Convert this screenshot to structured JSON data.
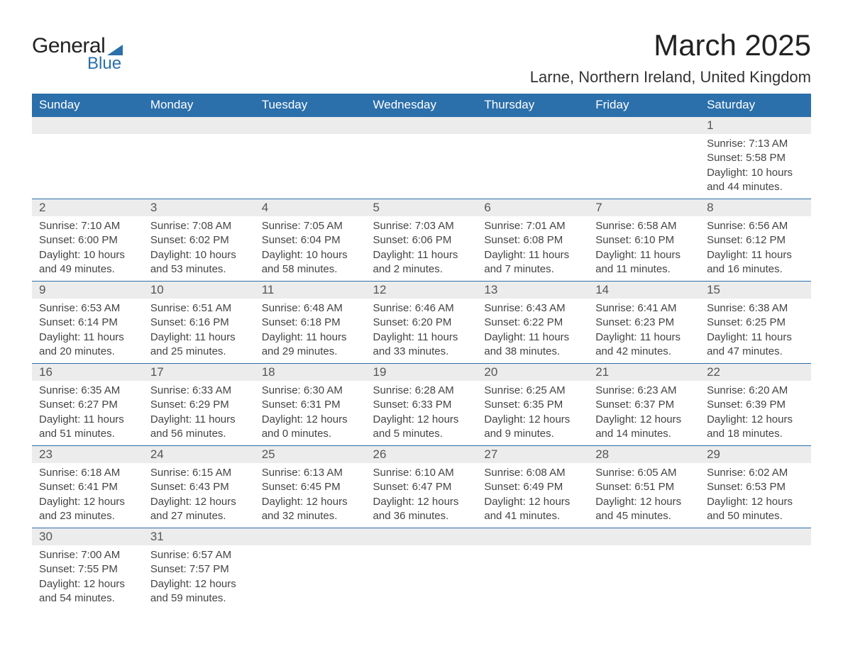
{
  "logo": {
    "text1": "General",
    "text2": "Blue"
  },
  "title": "March 2025",
  "location": "Larne, Northern Ireland, United Kingdom",
  "colors": {
    "header_bg": "#2b6fab",
    "header_text": "#ffffff",
    "daynum_bg": "#ececec",
    "row_border": "#2b6fab",
    "body_text": "#444444",
    "page_bg": "#ffffff"
  },
  "typography": {
    "title_fontsize": 42,
    "location_fontsize": 22,
    "header_fontsize": 17,
    "daynum_fontsize": 17,
    "cell_fontsize": 15
  },
  "columns": [
    "Sunday",
    "Monday",
    "Tuesday",
    "Wednesday",
    "Thursday",
    "Friday",
    "Saturday"
  ],
  "weeks": [
    [
      null,
      null,
      null,
      null,
      null,
      null,
      {
        "n": "1",
        "sunrise": "7:13 AM",
        "sunset": "5:58 PM",
        "dl1": "10 hours",
        "dl2": "and 44 minutes."
      }
    ],
    [
      {
        "n": "2",
        "sunrise": "7:10 AM",
        "sunset": "6:00 PM",
        "dl1": "10 hours",
        "dl2": "and 49 minutes."
      },
      {
        "n": "3",
        "sunrise": "7:08 AM",
        "sunset": "6:02 PM",
        "dl1": "10 hours",
        "dl2": "and 53 minutes."
      },
      {
        "n": "4",
        "sunrise": "7:05 AM",
        "sunset": "6:04 PM",
        "dl1": "10 hours",
        "dl2": "and 58 minutes."
      },
      {
        "n": "5",
        "sunrise": "7:03 AM",
        "sunset": "6:06 PM",
        "dl1": "11 hours",
        "dl2": "and 2 minutes."
      },
      {
        "n": "6",
        "sunrise": "7:01 AM",
        "sunset": "6:08 PM",
        "dl1": "11 hours",
        "dl2": "and 7 minutes."
      },
      {
        "n": "7",
        "sunrise": "6:58 AM",
        "sunset": "6:10 PM",
        "dl1": "11 hours",
        "dl2": "and 11 minutes."
      },
      {
        "n": "8",
        "sunrise": "6:56 AM",
        "sunset": "6:12 PM",
        "dl1": "11 hours",
        "dl2": "and 16 minutes."
      }
    ],
    [
      {
        "n": "9",
        "sunrise": "6:53 AM",
        "sunset": "6:14 PM",
        "dl1": "11 hours",
        "dl2": "and 20 minutes."
      },
      {
        "n": "10",
        "sunrise": "6:51 AM",
        "sunset": "6:16 PM",
        "dl1": "11 hours",
        "dl2": "and 25 minutes."
      },
      {
        "n": "11",
        "sunrise": "6:48 AM",
        "sunset": "6:18 PM",
        "dl1": "11 hours",
        "dl2": "and 29 minutes."
      },
      {
        "n": "12",
        "sunrise": "6:46 AM",
        "sunset": "6:20 PM",
        "dl1": "11 hours",
        "dl2": "and 33 minutes."
      },
      {
        "n": "13",
        "sunrise": "6:43 AM",
        "sunset": "6:22 PM",
        "dl1": "11 hours",
        "dl2": "and 38 minutes."
      },
      {
        "n": "14",
        "sunrise": "6:41 AM",
        "sunset": "6:23 PM",
        "dl1": "11 hours",
        "dl2": "and 42 minutes."
      },
      {
        "n": "15",
        "sunrise": "6:38 AM",
        "sunset": "6:25 PM",
        "dl1": "11 hours",
        "dl2": "and 47 minutes."
      }
    ],
    [
      {
        "n": "16",
        "sunrise": "6:35 AM",
        "sunset": "6:27 PM",
        "dl1": "11 hours",
        "dl2": "and 51 minutes."
      },
      {
        "n": "17",
        "sunrise": "6:33 AM",
        "sunset": "6:29 PM",
        "dl1": "11 hours",
        "dl2": "and 56 minutes."
      },
      {
        "n": "18",
        "sunrise": "6:30 AM",
        "sunset": "6:31 PM",
        "dl1": "12 hours",
        "dl2": "and 0 minutes."
      },
      {
        "n": "19",
        "sunrise": "6:28 AM",
        "sunset": "6:33 PM",
        "dl1": "12 hours",
        "dl2": "and 5 minutes."
      },
      {
        "n": "20",
        "sunrise": "6:25 AM",
        "sunset": "6:35 PM",
        "dl1": "12 hours",
        "dl2": "and 9 minutes."
      },
      {
        "n": "21",
        "sunrise": "6:23 AM",
        "sunset": "6:37 PM",
        "dl1": "12 hours",
        "dl2": "and 14 minutes."
      },
      {
        "n": "22",
        "sunrise": "6:20 AM",
        "sunset": "6:39 PM",
        "dl1": "12 hours",
        "dl2": "and 18 minutes."
      }
    ],
    [
      {
        "n": "23",
        "sunrise": "6:18 AM",
        "sunset": "6:41 PM",
        "dl1": "12 hours",
        "dl2": "and 23 minutes."
      },
      {
        "n": "24",
        "sunrise": "6:15 AM",
        "sunset": "6:43 PM",
        "dl1": "12 hours",
        "dl2": "and 27 minutes."
      },
      {
        "n": "25",
        "sunrise": "6:13 AM",
        "sunset": "6:45 PM",
        "dl1": "12 hours",
        "dl2": "and 32 minutes."
      },
      {
        "n": "26",
        "sunrise": "6:10 AM",
        "sunset": "6:47 PM",
        "dl1": "12 hours",
        "dl2": "and 36 minutes."
      },
      {
        "n": "27",
        "sunrise": "6:08 AM",
        "sunset": "6:49 PM",
        "dl1": "12 hours",
        "dl2": "and 41 minutes."
      },
      {
        "n": "28",
        "sunrise": "6:05 AM",
        "sunset": "6:51 PM",
        "dl1": "12 hours",
        "dl2": "and 45 minutes."
      },
      {
        "n": "29",
        "sunrise": "6:02 AM",
        "sunset": "6:53 PM",
        "dl1": "12 hours",
        "dl2": "and 50 minutes."
      }
    ],
    [
      {
        "n": "30",
        "sunrise": "7:00 AM",
        "sunset": "7:55 PM",
        "dl1": "12 hours",
        "dl2": "and 54 minutes."
      },
      {
        "n": "31",
        "sunrise": "6:57 AM",
        "sunset": "7:57 PM",
        "dl1": "12 hours",
        "dl2": "and 59 minutes."
      },
      null,
      null,
      null,
      null,
      null
    ]
  ],
  "labels": {
    "sunrise_prefix": "Sunrise: ",
    "sunset_prefix": "Sunset: ",
    "daylight_prefix": "Daylight: "
  }
}
